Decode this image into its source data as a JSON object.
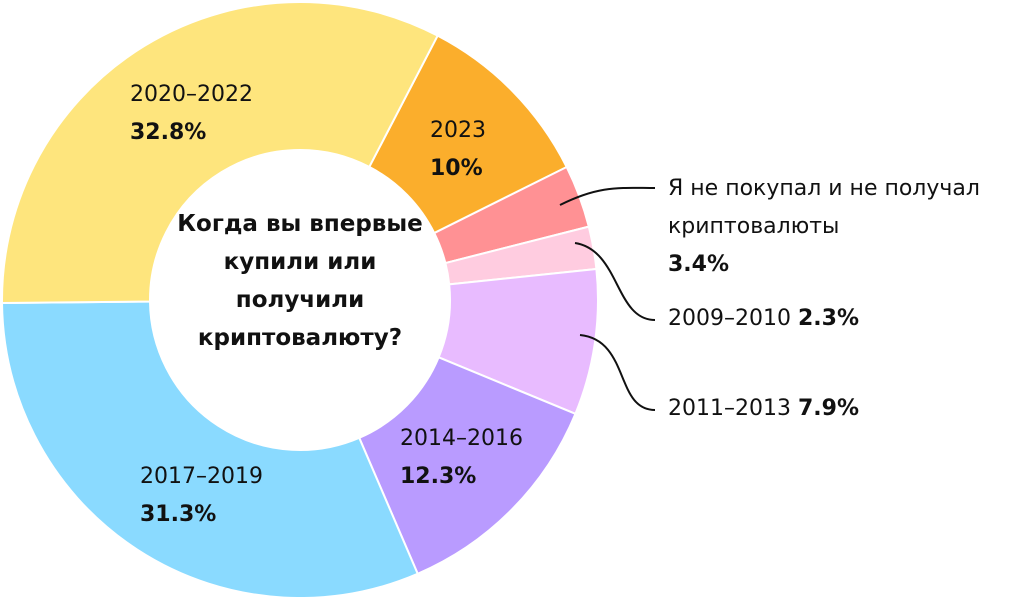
{
  "chart_data": {
    "type": "donut",
    "title": "Когда вы впервые купили или получили криптовалюту?",
    "categories": [
      "2023",
      "Я не покупал и не получал криптовалюты",
      "2009–2010",
      "2011–2013",
      "2014–2016",
      "2017–2019",
      "2020–2022"
    ],
    "values": [
      10,
      3.4,
      2.3,
      7.9,
      12.3,
      31.3,
      32.8
    ],
    "value_labels": [
      "10%",
      "3.4%",
      "2.3%",
      "7.9%",
      "12.3%",
      "31.3%",
      "32.8%"
    ],
    "colors": [
      "#fbae2c",
      "#ff9194",
      "#ffcce0",
      "#e8bbff",
      "#b99bff",
      "#8adaff",
      "#fee57d"
    ]
  }
}
